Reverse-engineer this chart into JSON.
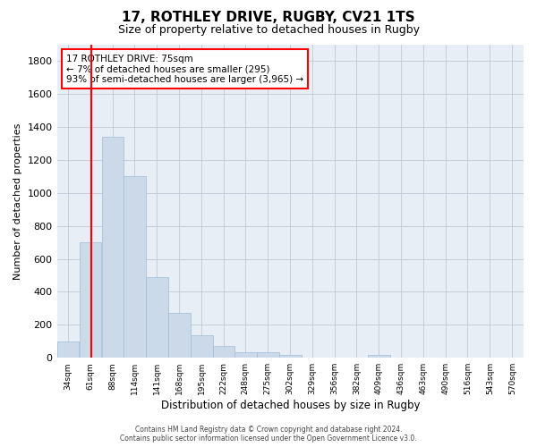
{
  "title": "17, ROTHLEY DRIVE, RUGBY, CV21 1TS",
  "subtitle": "Size of property relative to detached houses in Rugby",
  "xlabel": "Distribution of detached houses by size in Rugby",
  "ylabel": "Number of detached properties",
  "footer_line1": "Contains HM Land Registry data © Crown copyright and database right 2024.",
  "footer_line2": "Contains public sector information licensed under the Open Government Licence v3.0.",
  "annotation_line1": "17 ROTHLEY DRIVE: 75sqm",
  "annotation_line2": "← 7% of detached houses are smaller (295)",
  "annotation_line3": "93% of semi-detached houses are larger (3,965) →",
  "bar_color": "#ccd9e8",
  "bar_edge_color": "#a0bcd4",
  "vline_color": "red",
  "vline_x": 75,
  "categories": [
    "34sqm",
    "61sqm",
    "88sqm",
    "114sqm",
    "141sqm",
    "168sqm",
    "195sqm",
    "222sqm",
    "248sqm",
    "275sqm",
    "302sqm",
    "329sqm",
    "356sqm",
    "382sqm",
    "409sqm",
    "436sqm",
    "463sqm",
    "490sqm",
    "516sqm",
    "543sqm",
    "570sqm"
  ],
  "bin_edges": [
    34,
    61,
    88,
    114,
    141,
    168,
    195,
    222,
    248,
    275,
    302,
    329,
    356,
    382,
    409,
    436,
    463,
    490,
    516,
    543,
    570
  ],
  "values": [
    100,
    700,
    1340,
    1100,
    490,
    270,
    135,
    70,
    35,
    35,
    15,
    0,
    0,
    0,
    20,
    0,
    0,
    0,
    0,
    0,
    0
  ],
  "ylim": [
    0,
    1900
  ],
  "yticks": [
    0,
    200,
    400,
    600,
    800,
    1000,
    1200,
    1400,
    1600,
    1800
  ],
  "bg_color": "#ffffff",
  "plot_bg_color": "#e8eef5",
  "grid_color": "#c0c8d8",
  "annotation_box_color": "red",
  "title_fontsize": 11,
  "subtitle_fontsize": 9
}
